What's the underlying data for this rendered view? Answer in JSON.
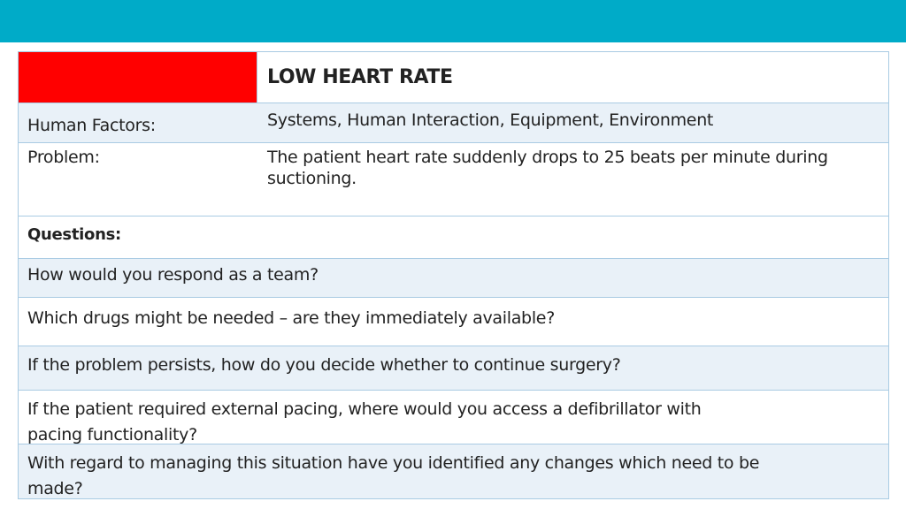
{
  "slide": {
    "title": "LOW HEART RATE",
    "human_factors_label": "Human Factors:",
    "human_factors_value": "Systems,  Human Interaction, Equipment, Environment",
    "problem_label": "Problem:",
    "problem_value": "The patient heart rate suddenly drops to 25 beats per minute during suctioning."
  },
  "questions": {
    "header": "Questions:",
    "items": [
      "How would you respond as a team?",
      "Which drugs might be needed – are they immediately available?",
      "If the problem persists, how do you decide whether to continue surgery?",
      "If the patient required external pacing, where would you access a defibrillator with pacing functionality?",
      "With regard to managing this situation have you identified any changes which need to be made?"
    ]
  },
  "colors": {
    "top_bar": "#00abc8",
    "title_cell": "#ff0000",
    "row_band": "#e9f1f8",
    "border": "#a9cbe3"
  }
}
